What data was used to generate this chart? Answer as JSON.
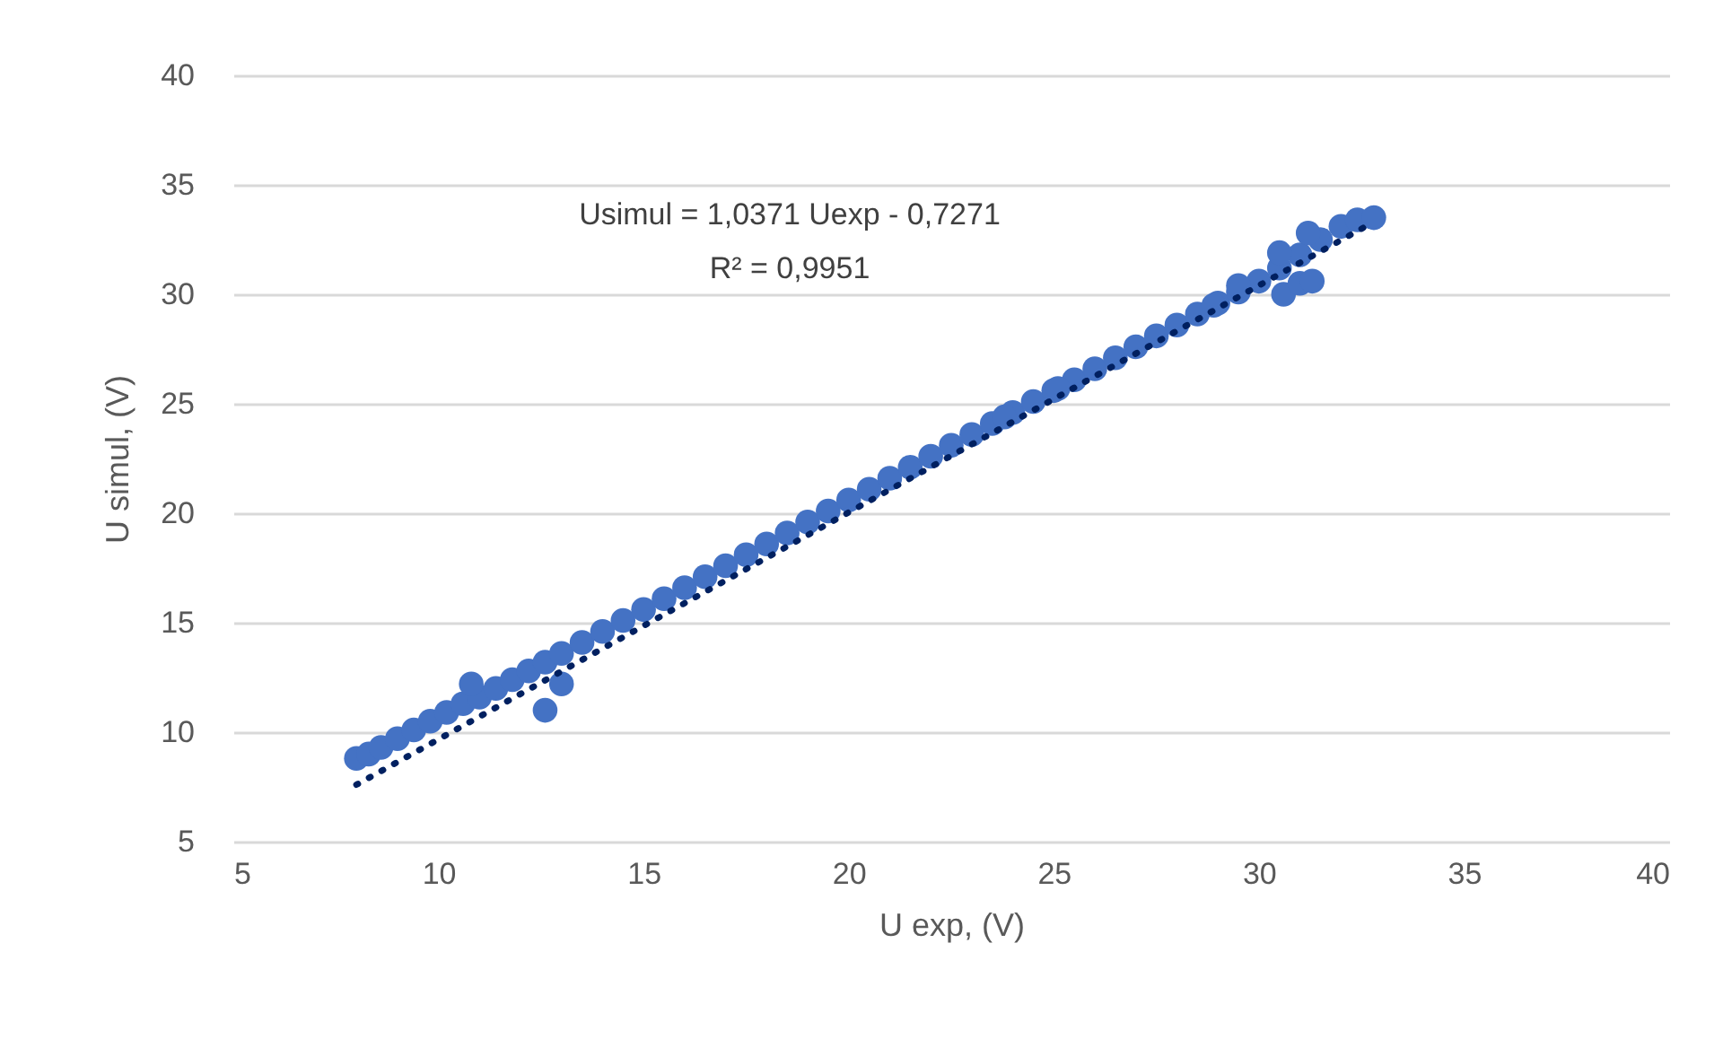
{
  "chart_data": {
    "type": "scatter",
    "xlabel": "U exp, (V)",
    "ylabel": "U simul, (V)",
    "annotations": [
      "Usimul = 1,0371 Uexp - 0,7271",
      "R² = 0,9951"
    ],
    "xlim": [
      5,
      40
    ],
    "xticks": [
      5,
      10,
      15,
      20,
      25,
      30,
      35,
      40
    ],
    "ylim": [
      5,
      40
    ],
    "yticks": [
      5,
      10,
      15,
      20,
      25,
      30,
      35,
      40
    ],
    "grid": "y",
    "series": [
      {
        "marker": "circle",
        "color": "#4472c4",
        "x": [
          8.0,
          8.3,
          8.6,
          9.0,
          9.4,
          9.8,
          10.2,
          10.6,
          11.0,
          11.4,
          11.8,
          12.2,
          12.6,
          13.0,
          13.5,
          14.0,
          14.5,
          15.0,
          15.5,
          16.0,
          16.5,
          17.0,
          17.5,
          18.0,
          18.5,
          19.0,
          19.5,
          20.0,
          20.5,
          21.0,
          21.5,
          22.0,
          22.5,
          23.0,
          23.5,
          24.0,
          24.5,
          25.0,
          25.5,
          26.0,
          26.5,
          27.0,
          27.5,
          28.0,
          28.5,
          29.0,
          29.5,
          30.0,
          30.5,
          31.0,
          31.5,
          32.0,
          32.4,
          32.8,
          10.8,
          12.6,
          13.0,
          23.8,
          25.1,
          28.9,
          29.5,
          30.5,
          30.6,
          31.0,
          31.2,
          31.3
        ],
        "values": [
          8.8,
          9.0,
          9.3,
          9.7,
          10.1,
          10.5,
          10.9,
          11.3,
          11.6,
          12.0,
          12.4,
          12.8,
          13.2,
          13.6,
          14.1,
          14.6,
          15.1,
          15.6,
          16.1,
          16.6,
          17.1,
          17.6,
          18.1,
          18.6,
          19.1,
          19.6,
          20.1,
          20.6,
          21.1,
          21.6,
          22.1,
          22.6,
          23.1,
          23.6,
          24.1,
          24.6,
          25.1,
          25.6,
          26.1,
          26.6,
          27.1,
          27.6,
          28.1,
          28.6,
          29.1,
          29.6,
          30.1,
          30.6,
          31.2,
          31.8,
          32.5,
          33.1,
          33.4,
          33.5,
          12.2,
          11.0,
          12.2,
          24.4,
          25.7,
          29.5,
          30.4,
          31.9,
          30.0,
          30.5,
          32.8,
          30.6
        ]
      },
      {
        "type": "line",
        "marker": "none",
        "color": "#002060",
        "line_style": "dotted",
        "x": [
          8,
          32.7
        ],
        "values": [
          7.6,
          33.2
        ]
      }
    ]
  }
}
